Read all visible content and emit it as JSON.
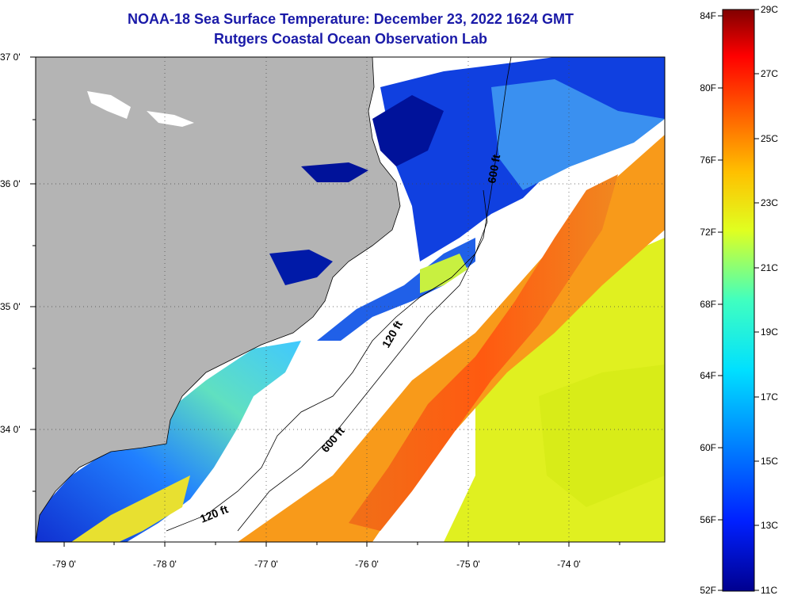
{
  "title": "NOAA-18 Sea Surface Temperature:  December 23, 2022 1624 GMT",
  "subtitle": "Rutgers Coastal Ocean Observation Lab",
  "axes": {
    "lat_labels": [
      "37 0'",
      "36 0'",
      "35 0'",
      "34 0'"
    ],
    "lon_labels": [
      "-79 0'",
      "-78 0'",
      "-77 0'",
      "-76 0'",
      "-75 0'",
      "-74 0'"
    ]
  },
  "contours": {
    "label_120_a": "120 ft",
    "label_120_b": "120 ft",
    "label_600_a": "600 ft",
    "label_600_b": "600 ft"
  },
  "colorbar": {
    "fahrenheit_labels": [
      "84F",
      "80F",
      "76F",
      "72F",
      "68F",
      "64F",
      "60F",
      "56F",
      "52F"
    ],
    "celsius_labels": [
      "29C",
      "27C",
      "25C",
      "23C",
      "21C",
      "19C",
      "17C",
      "15C",
      "13C",
      "11C"
    ]
  },
  "colors": {
    "land": "#b4b4b4",
    "cloud": "#ffffff",
    "title": "#1a1aa8",
    "cold": "#00008f",
    "warm": "#8b0000"
  }
}
